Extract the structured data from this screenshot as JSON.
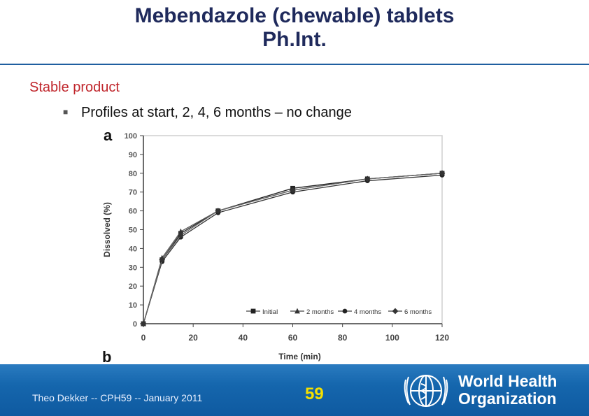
{
  "title": {
    "line1": "Mebendazole (chewable) tablets",
    "line2": "Ph.Int."
  },
  "heading": "Stable product",
  "bullet": "Profiles at start, 2, 4, 6 months – no change",
  "chart_data": {
    "type": "line",
    "panel_label": "a",
    "panel_label_below": "b",
    "xlabel": "Time (min)",
    "ylabel": "Dissolved (%)",
    "xlim": [
      0,
      120
    ],
    "ylim": [
      0,
      100
    ],
    "xticks": [
      0,
      20,
      40,
      60,
      80,
      100,
      120
    ],
    "yticks": [
      0,
      10,
      20,
      30,
      40,
      50,
      60,
      70,
      80,
      90,
      100
    ],
    "grid": false,
    "legend_position": "bottom-right",
    "x": [
      0,
      7.5,
      15,
      30,
      60,
      90,
      120
    ],
    "series": [
      {
        "name": "Initial",
        "marker": "square",
        "values": [
          0,
          34,
          48,
          60,
          72,
          77,
          80
        ]
      },
      {
        "name": "2 months",
        "marker": "triangle",
        "values": [
          0,
          35,
          49,
          60,
          71,
          77,
          80
        ]
      },
      {
        "name": "4 months",
        "marker": "circle",
        "values": [
          0,
          33,
          46,
          59,
          70,
          76,
          79
        ]
      },
      {
        "name": "6 months",
        "marker": "diamond",
        "values": [
          0,
          34,
          47,
          60,
          71,
          77,
          80
        ]
      }
    ]
  },
  "footer": {
    "text": "Theo Dekker -- CPH59 -- January 2011",
    "page_number": "59",
    "org_line1": "World Health",
    "org_line2": "Organization"
  },
  "colors": {
    "title": "#1f2a5c",
    "heading": "#c0262c",
    "footer_bg": "#1566ad",
    "page_number": "#f5e000"
  }
}
